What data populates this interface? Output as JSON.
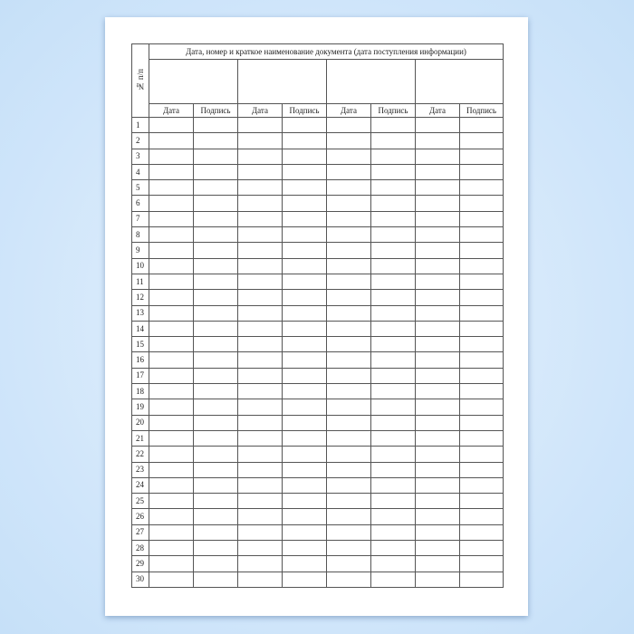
{
  "table": {
    "number_header": "№ п/п",
    "group_header": "Дата, номер и краткое наименование документа (дата поступления информации)",
    "sub_headers": [
      "Дата",
      "Подпись",
      "Дата",
      "Подпись",
      "Дата",
      "Подпись",
      "Дата",
      "Подпись"
    ],
    "row_numbers": [
      "1",
      "2",
      "3",
      "4",
      "5",
      "6",
      "7",
      "8",
      "9",
      "10",
      "11",
      "12",
      "13",
      "14",
      "15",
      "16",
      "17",
      "18",
      "19",
      "20",
      "21",
      "22",
      "23",
      "24",
      "25",
      "26",
      "27",
      "28",
      "29",
      "30"
    ]
  }
}
